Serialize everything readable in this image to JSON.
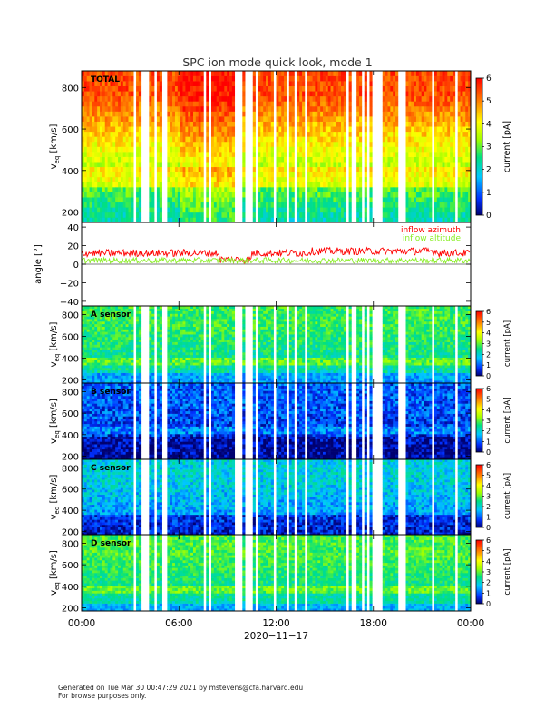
{
  "title": "SPC ion mode quick look, mode 1",
  "footer": {
    "line1": "Generated on Tue Mar 30 00:47:29 2021 by mstevens@cfa.harvard.edu",
    "line2": "For browse purposes only."
  },
  "chart_data": [
    {
      "type": "heatmap",
      "panel_label": "TOTAL",
      "ylabel_main": "v",
      "ylabel_sub": "eq",
      "ylabel_unit": "[km/s]",
      "ylim": [
        150,
        880
      ],
      "yticks": [
        "200",
        "400",
        "600",
        "800"
      ],
      "ytick_values": [
        200,
        400,
        600,
        800
      ],
      "colorbar": {
        "label": "current [pA]",
        "range": [
          0,
          6
        ],
        "ticks": [
          "0",
          "1",
          "2",
          "3",
          "4",
          "5",
          "6"
        ]
      },
      "description_colors": {
        "low": "#00ffcc",
        "mid": "#ffff00",
        "high": "#ff0000"
      }
    },
    {
      "type": "line",
      "ylabel": "angle [°]",
      "ylim": [
        -45,
        45
      ],
      "yticks": [
        "40",
        "20",
        "0",
        "−20",
        "−40"
      ],
      "ytick_values": [
        40,
        20,
        0,
        -20,
        -40
      ],
      "series": [
        {
          "name": "inflow azimuth",
          "color": "#ff0000",
          "mean": 12,
          "spread": 4
        },
        {
          "name": "inflow altitude",
          "color": "#88ee22",
          "mean": 4,
          "spread": 3
        }
      ]
    },
    {
      "type": "heatmap",
      "panel_label": "A sensor",
      "ylabel_main": "v",
      "ylabel_sub": "eq",
      "ylabel_unit": "[km/s]",
      "ylim": [
        170,
        880
      ],
      "yticks": [
        "200",
        "400",
        "600",
        "800"
      ],
      "ytick_values": [
        200,
        400,
        600,
        800
      ],
      "colorbar": {
        "label": "current [pA]",
        "range": [
          0,
          6
        ],
        "ticks": [
          "0",
          "1",
          "2",
          "3",
          "4",
          "5",
          "6"
        ]
      }
    },
    {
      "type": "heatmap",
      "panel_label": "B sensor",
      "ylabel_main": "v",
      "ylabel_sub": "eq",
      "ylabel_unit": "[km/s]",
      "ylim": [
        170,
        880
      ],
      "yticks": [
        "200",
        "400",
        "600",
        "800"
      ],
      "ytick_values": [
        200,
        400,
        600,
        800
      ],
      "colorbar": {
        "label": "current [pA]",
        "range": [
          0,
          6
        ],
        "ticks": [
          "0",
          "1",
          "2",
          "3",
          "4",
          "5",
          "6"
        ]
      }
    },
    {
      "type": "heatmap",
      "panel_label": "C sensor",
      "ylabel_main": "v",
      "ylabel_sub": "eq",
      "ylabel_unit": "[km/s]",
      "ylim": [
        170,
        880
      ],
      "yticks": [
        "200",
        "400",
        "600",
        "800"
      ],
      "ytick_values": [
        200,
        400,
        600,
        800
      ],
      "colorbar": {
        "label": "current [pA]",
        "range": [
          0,
          6
        ],
        "ticks": [
          "0",
          "1",
          "2",
          "3",
          "4",
          "5",
          "6"
        ]
      }
    },
    {
      "type": "heatmap",
      "panel_label": "D sensor",
      "ylabel_main": "v",
      "ylabel_sub": "eq",
      "ylabel_unit": "[km/s]",
      "ylim": [
        170,
        880
      ],
      "yticks": [
        "200",
        "400",
        "600",
        "800"
      ],
      "ytick_values": [
        200,
        400,
        600,
        800
      ],
      "colorbar": {
        "label": "current [pA]",
        "range": [
          0,
          6
        ],
        "ticks": [
          "0",
          "1",
          "2",
          "3",
          "4",
          "5",
          "6"
        ]
      }
    }
  ],
  "x_axis": {
    "ticks": [
      "00:00",
      "06:00",
      "12:00",
      "18:00",
      "00:00"
    ],
    "tick_hours": [
      0,
      6,
      12,
      18,
      24
    ],
    "xlabel": "2020−11−17",
    "range_hours": [
      0,
      24
    ]
  }
}
